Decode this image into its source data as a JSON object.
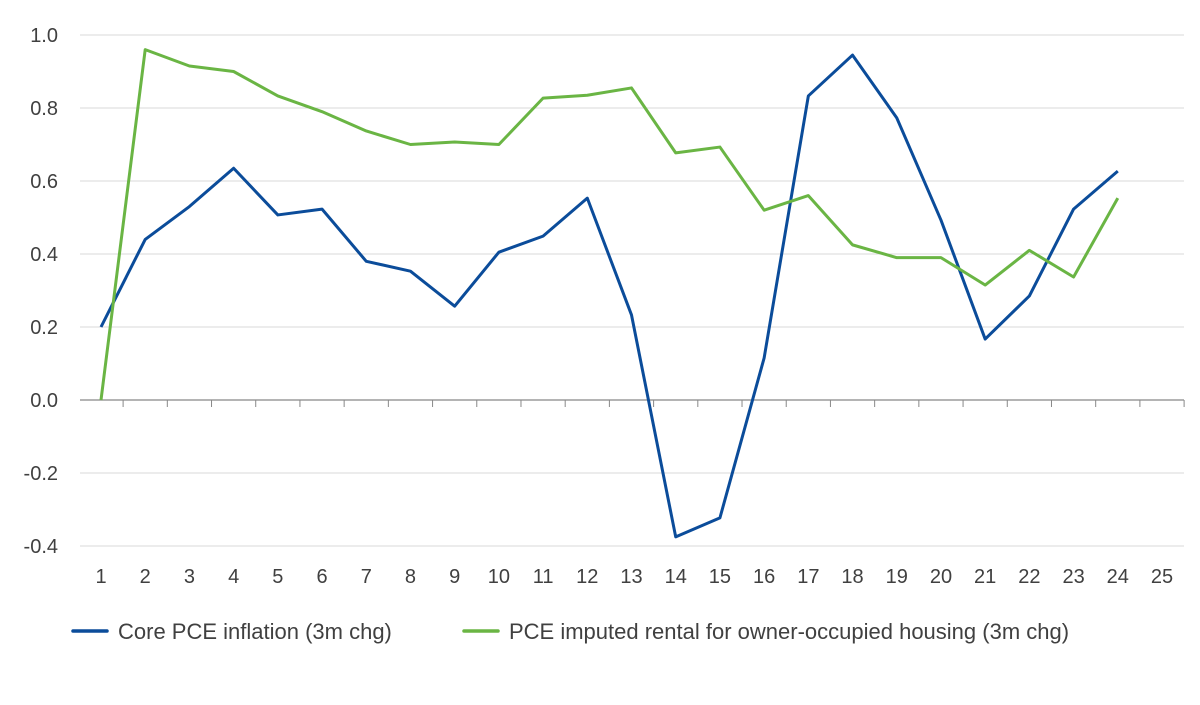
{
  "chart_data": {
    "type": "line",
    "title": "",
    "xlabel": "",
    "ylabel": "",
    "x": [
      1,
      2,
      3,
      4,
      5,
      6,
      7,
      8,
      9,
      10,
      11,
      12,
      13,
      14,
      15,
      16,
      17,
      18,
      19,
      20,
      21,
      22,
      23,
      24
    ],
    "x_ticks": [
      "1",
      "2",
      "3",
      "4",
      "5",
      "6",
      "7",
      "8",
      "9",
      "10",
      "11",
      "12",
      "13",
      "14",
      "15",
      "16",
      "17",
      "18",
      "19",
      "20",
      "21",
      "22",
      "23",
      "24",
      "25"
    ],
    "y_ticks": [
      "1.0",
      "0.8",
      "0.6",
      "0.4",
      "0.2",
      "0.0",
      "-0.2",
      "-0.4"
    ],
    "ylim": [
      -0.4,
      1.0
    ],
    "xlim": [
      1,
      25
    ],
    "grid": "horizontal",
    "legend_position": "bottom",
    "series": [
      {
        "name": "Core PCE inflation (3m chg)",
        "color": "#0B4C9A",
        "values": [
          0.2,
          0.44,
          0.53,
          0.635,
          0.507,
          0.523,
          0.38,
          0.353,
          0.257,
          0.405,
          0.449,
          0.553,
          0.233,
          -0.375,
          -0.323,
          0.115,
          0.833,
          0.945,
          0.773,
          0.493,
          0.167,
          0.285,
          0.523,
          0.627
        ]
      },
      {
        "name": "PCE imputed rental for owner-occupied housing (3m chg)",
        "color": "#6AB544",
        "values": [
          0.0,
          0.96,
          0.915,
          0.9,
          0.833,
          0.79,
          0.737,
          0.7,
          0.707,
          0.7,
          0.827,
          0.835,
          0.855,
          0.677,
          0.693,
          0.52,
          0.56,
          0.425,
          0.39,
          0.39,
          0.315,
          0.41,
          0.337,
          0.553
        ]
      }
    ]
  }
}
